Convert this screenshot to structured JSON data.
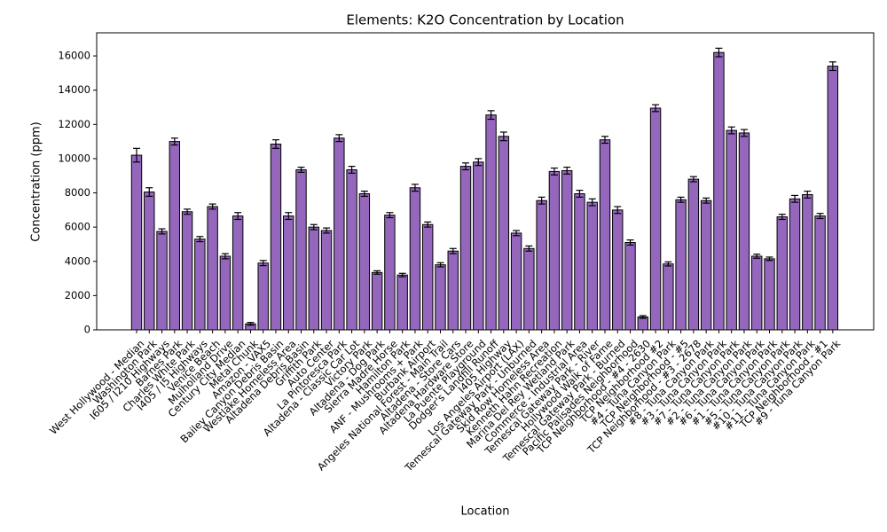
{
  "chart_data": {
    "type": "bar",
    "title": "Elements: K2O Concentration by Location",
    "xlabel": "Location",
    "ylabel": "Concentration (ppm)",
    "categories": [
      "West Hollywood - Median",
      "Washington Park",
      "I605 / I210 Highways",
      "Barnes Park",
      "Charles White Park",
      "I405 / I5 Highways",
      "Venice Beach",
      "Mulholland Drive",
      "Century City Median",
      "Metal Chunk",
      "Amazon - VAX5",
      "Bailey Canyon Debris Basin",
      "Westlake Homeless Area",
      "Altadena Debris Basin",
      "Griffith Park",
      "Auto Center",
      "La Pintoresca Park",
      "Altadena - Classic Car Lot",
      "Victory Park",
      "Altadena - Dog Park",
      "Sierra Madre Horse",
      "Hamilton Park",
      "ANF - Mushrooms + Park",
      "Burbank Airport",
      "Angeles National Forest - Main Trail",
      "Altadena - Store Cars",
      "Altadena Hardware Store",
      "La Puente Playground",
      "Dodger's Landfill Runoff",
      "I405 Highway",
      "Los Angeles Airport (LAX)",
      "Temescal Gateway Park - Unburned",
      "Skid Row Homeless Area",
      "Kenneth Hahn Recreation",
      "Marina Del Rey Wetland Park",
      "Commerce - Industrial Area",
      "Temescal Gateway Park - River",
      "Hollywood Walk of Fame",
      "Temescal Gateway Park - Burned",
      "Pacific Palisades Neighborhood",
      "TCP Neighborhood - #4 - 2630",
      "TCP Neighborhood #2",
      "#4 - Tuna Canyon Park",
      "TCP Neighborhood - #5",
      "TCP Neighborhood - #3 - 2678",
      "#8 - Tuna Canyon Park",
      "#3 - Tuna Canyon Park",
      "#7 - Tuna Canyon Park",
      "#2 - Tuna Canyon Park",
      "#6 - Tuna Canyon Park",
      "#1 - Tuna Canyon Park",
      "#5 - Tuna Canyon Park",
      "#10 - Tuna Canyon Park",
      "#11 - Tuna Canyon Park",
      "TCP Neighborhood - #1",
      "#9 - Tuna Canyon Park"
    ],
    "values": [
      10200,
      8050,
      5750,
      11000,
      6900,
      5300,
      7200,
      4300,
      6650,
      350,
      3900,
      10850,
      6650,
      9350,
      6000,
      5800,
      11200,
      9350,
      7950,
      3350,
      6700,
      3200,
      8300,
      6150,
      3800,
      4600,
      9550,
      9800,
      12550,
      11300,
      5650,
      4750,
      7550,
      9250,
      9300,
      7950,
      7450,
      11100,
      7000,
      5100,
      750,
      12950,
      3850,
      7600,
      8800,
      7550,
      16200,
      11650,
      11500,
      4300,
      4150,
      6600,
      7650,
      7900,
      6650,
      15400
    ],
    "errors": [
      400,
      250,
      150,
      200,
      150,
      150,
      150,
      150,
      200,
      80,
      150,
      250,
      200,
      150,
      150,
      150,
      200,
      200,
      150,
      100,
      150,
      100,
      200,
      150,
      120,
      150,
      200,
      200,
      250,
      250,
      150,
      150,
      200,
      200,
      200,
      200,
      200,
      200,
      200,
      150,
      80,
      200,
      120,
      150,
      150,
      150,
      250,
      200,
      200,
      120,
      100,
      150,
      200,
      200,
      150,
      250
    ],
    "color": "#9467bd",
    "edgecolor": "#000000",
    "ylim": [
      0,
      17350
    ],
    "yticks": [
      0,
      2000,
      4000,
      6000,
      8000,
      10000,
      12000,
      14000,
      16000
    ]
  }
}
